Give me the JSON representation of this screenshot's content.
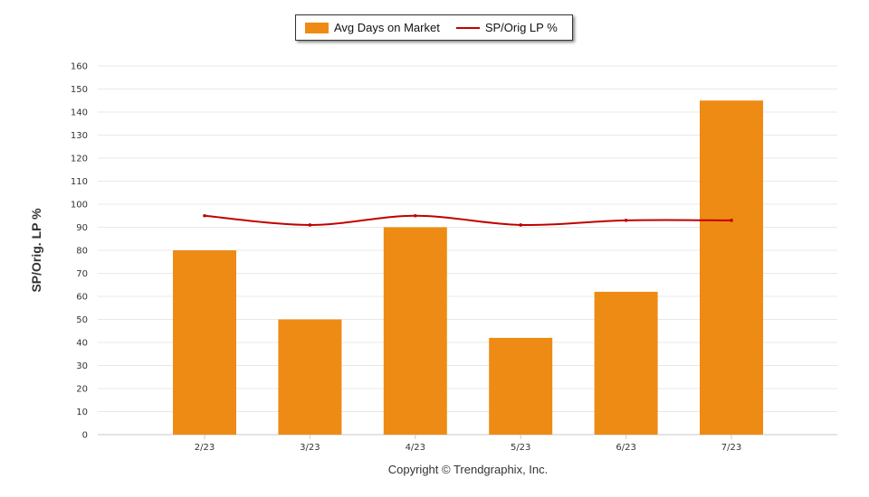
{
  "chart_data": {
    "type": "bar",
    "categories": [
      "2/23",
      "3/23",
      "4/23",
      "5/23",
      "6/23",
      "7/23"
    ],
    "series": [
      {
        "name": "Avg Days on Market",
        "type": "bar",
        "color": "#ee8b14",
        "values": [
          80,
          50,
          90,
          42,
          62,
          145
        ]
      },
      {
        "name": "SP/Orig LP %",
        "type": "line",
        "color": "#c00000",
        "values": [
          95,
          91,
          95,
          91,
          93,
          93
        ]
      }
    ],
    "title": "",
    "xlabel": "",
    "ylabel": "SP/Orig. LP %",
    "ylim": [
      0,
      160
    ],
    "yticks": [
      0,
      10,
      20,
      30,
      40,
      50,
      60,
      70,
      80,
      90,
      100,
      110,
      120,
      130,
      140,
      150,
      160
    ],
    "grid": true,
    "legend_position": "top-center"
  },
  "footer": {
    "copyright": "Copyright © Trendgraphix, Inc."
  }
}
